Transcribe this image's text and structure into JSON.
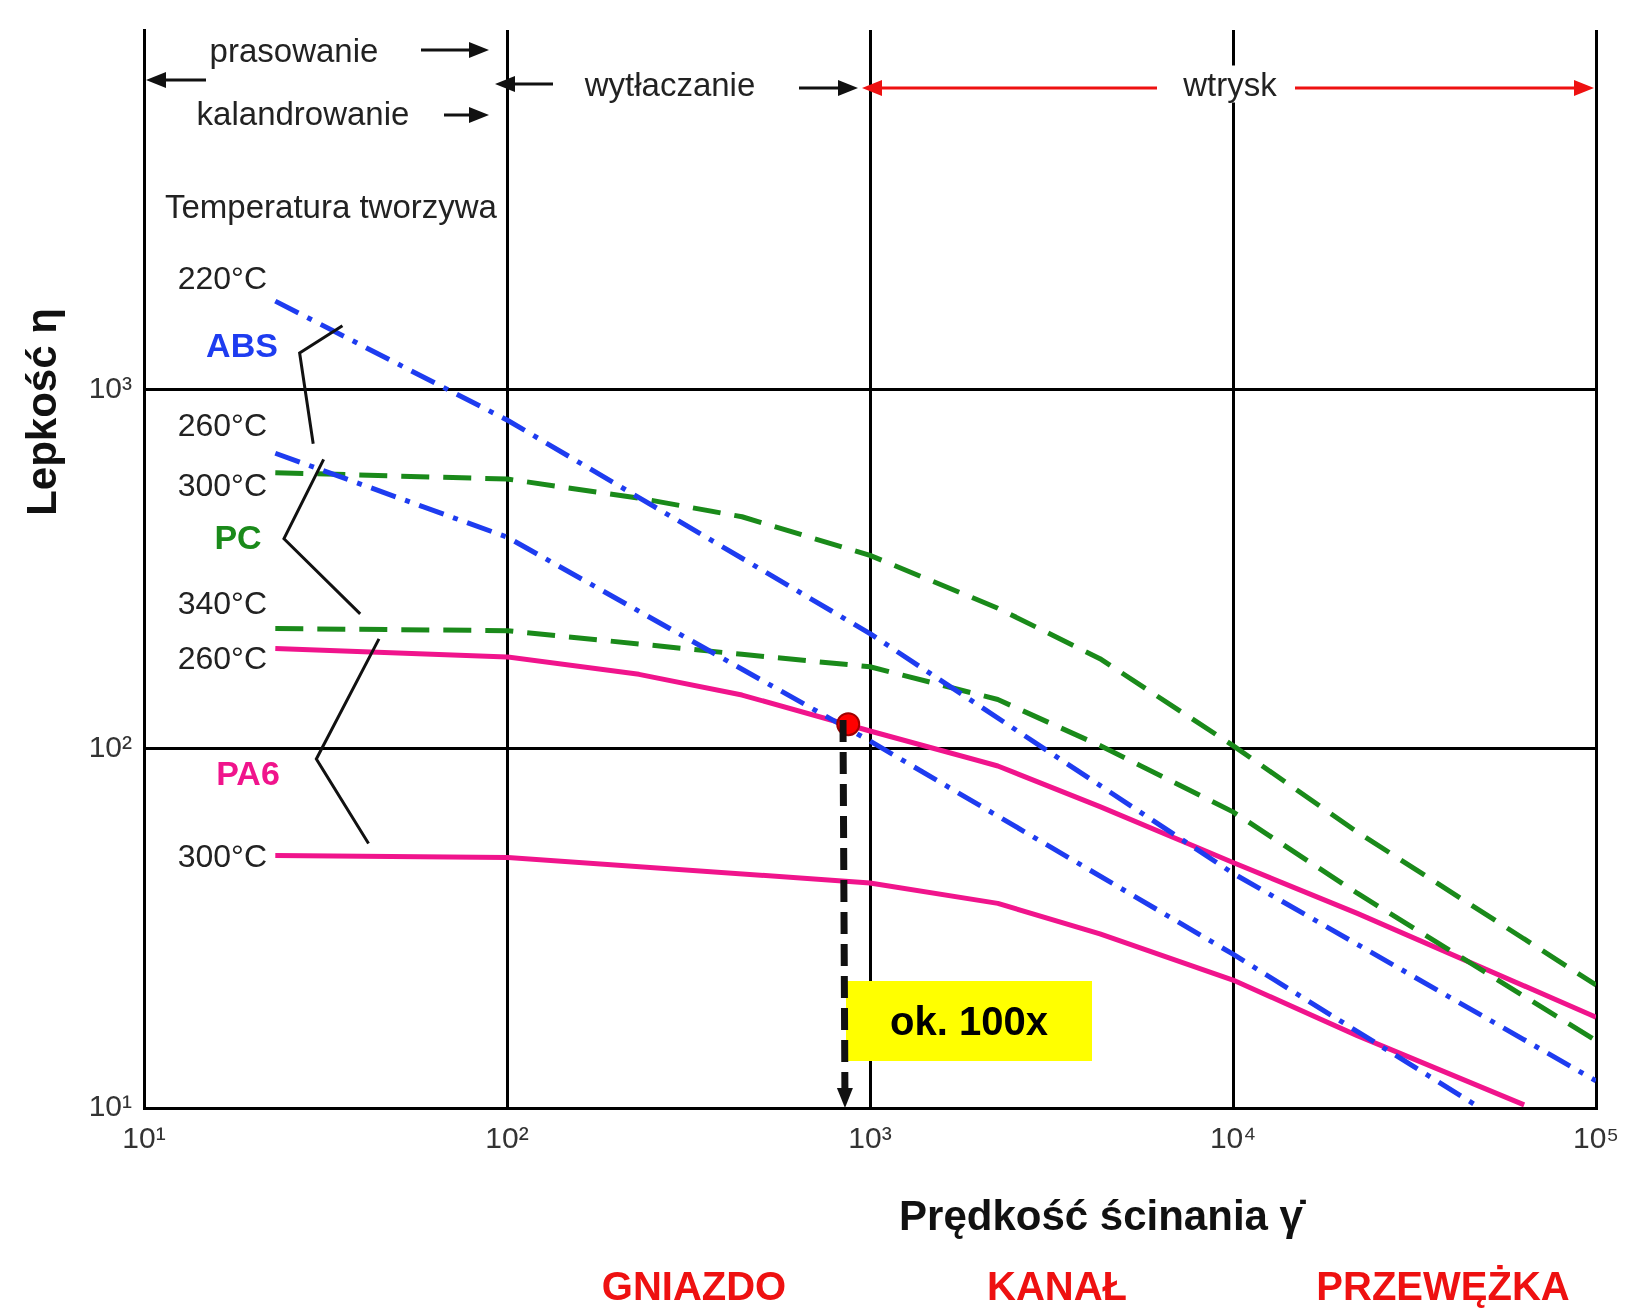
{
  "chart_data": {
    "type": "line",
    "xlabel": "Prędkość ścinania γ̇",
    "ylabel": "Lepkość η",
    "log": "xy",
    "grid": true,
    "legend": false,
    "xlim": [
      10,
      100000
    ],
    "ylim": [
      10,
      10000
    ],
    "xticks": [
      {
        "value": 10,
        "label": "10¹"
      },
      {
        "value": 100,
        "label": "10²"
      },
      {
        "value": 1000,
        "label": "10³"
      },
      {
        "value": 10000,
        "label": "10⁴"
      },
      {
        "value": 100000,
        "label": "10⁵"
      }
    ],
    "yticks": [
      {
        "value": 10,
        "label": "10¹"
      },
      {
        "value": 100,
        "label": "10²"
      },
      {
        "value": 1000,
        "label": "10³"
      }
    ],
    "series": [
      {
        "color": "#1e3cf0",
        "line_style": "dashdot",
        "x": [
          23,
          100,
          1000,
          10000,
          100000
        ],
        "values": [
          1760,
          822,
          209,
          45,
          11.9
        ]
      },
      {
        "color": "#1e3cf0",
        "line_style": "dashdot",
        "x": [
          23,
          100,
          1000,
          10000,
          48000
        ],
        "values": [
          664,
          388,
          105,
          26.8,
          10
        ]
      },
      {
        "color": "#1a8a1a",
        "line_style": "dashed",
        "x": [
          23,
          100,
          231,
          444,
          1000,
          2250,
          4300,
          10000,
          22000,
          100000
        ],
        "values": [
          586,
          563,
          498,
          442,
          345,
          246,
          178,
          102,
          58.6,
          22
        ]
      },
      {
        "color": "#1a8a1a",
        "line_style": "dashed",
        "x": [
          23,
          100,
          444,
          1000,
          2250,
          4300,
          10000,
          22000,
          100000
        ],
        "values": [
          216,
          213,
          183,
          169,
          137,
          102,
          66.7,
          39.6,
          15.4
        ]
      },
      {
        "color": "#f0148c",
        "line_style": "solid",
        "x": [
          23,
          100,
          231,
          444,
          1000,
          2250,
          4300,
          10000,
          22000,
          100000
        ],
        "values": [
          190,
          180,
          161,
          141,
          112,
          89.5,
          69,
          48.2,
          34.8,
          17.9
        ]
      },
      {
        "color": "#f0148c",
        "line_style": "solid",
        "x": [
          23,
          100,
          1000,
          2250,
          4300,
          10000,
          22000,
          63400
        ],
        "values": [
          50.4,
          49.8,
          42.3,
          37.1,
          30.5,
          22.7,
          15.9,
          10.2
        ]
      },
      {
        "type": "scatter",
        "marker": "circle",
        "color": "#ff0000",
        "x": [
          871
        ],
        "values": [
          117
        ]
      }
    ],
    "annotations": [
      "prasowanie",
      "kalandrowanie",
      "wytłaczanie",
      "wtrysk",
      "Temperatura tworzywa",
      "ABS",
      "PC",
      "PA6",
      "ok. 100x",
      "GNIAZDO",
      "KANAŁ",
      "PRZEWĘŻKA",
      "220°C",
      "260°C",
      "300°C",
      "340°C",
      "260°C",
      "300°C"
    ]
  }
}
